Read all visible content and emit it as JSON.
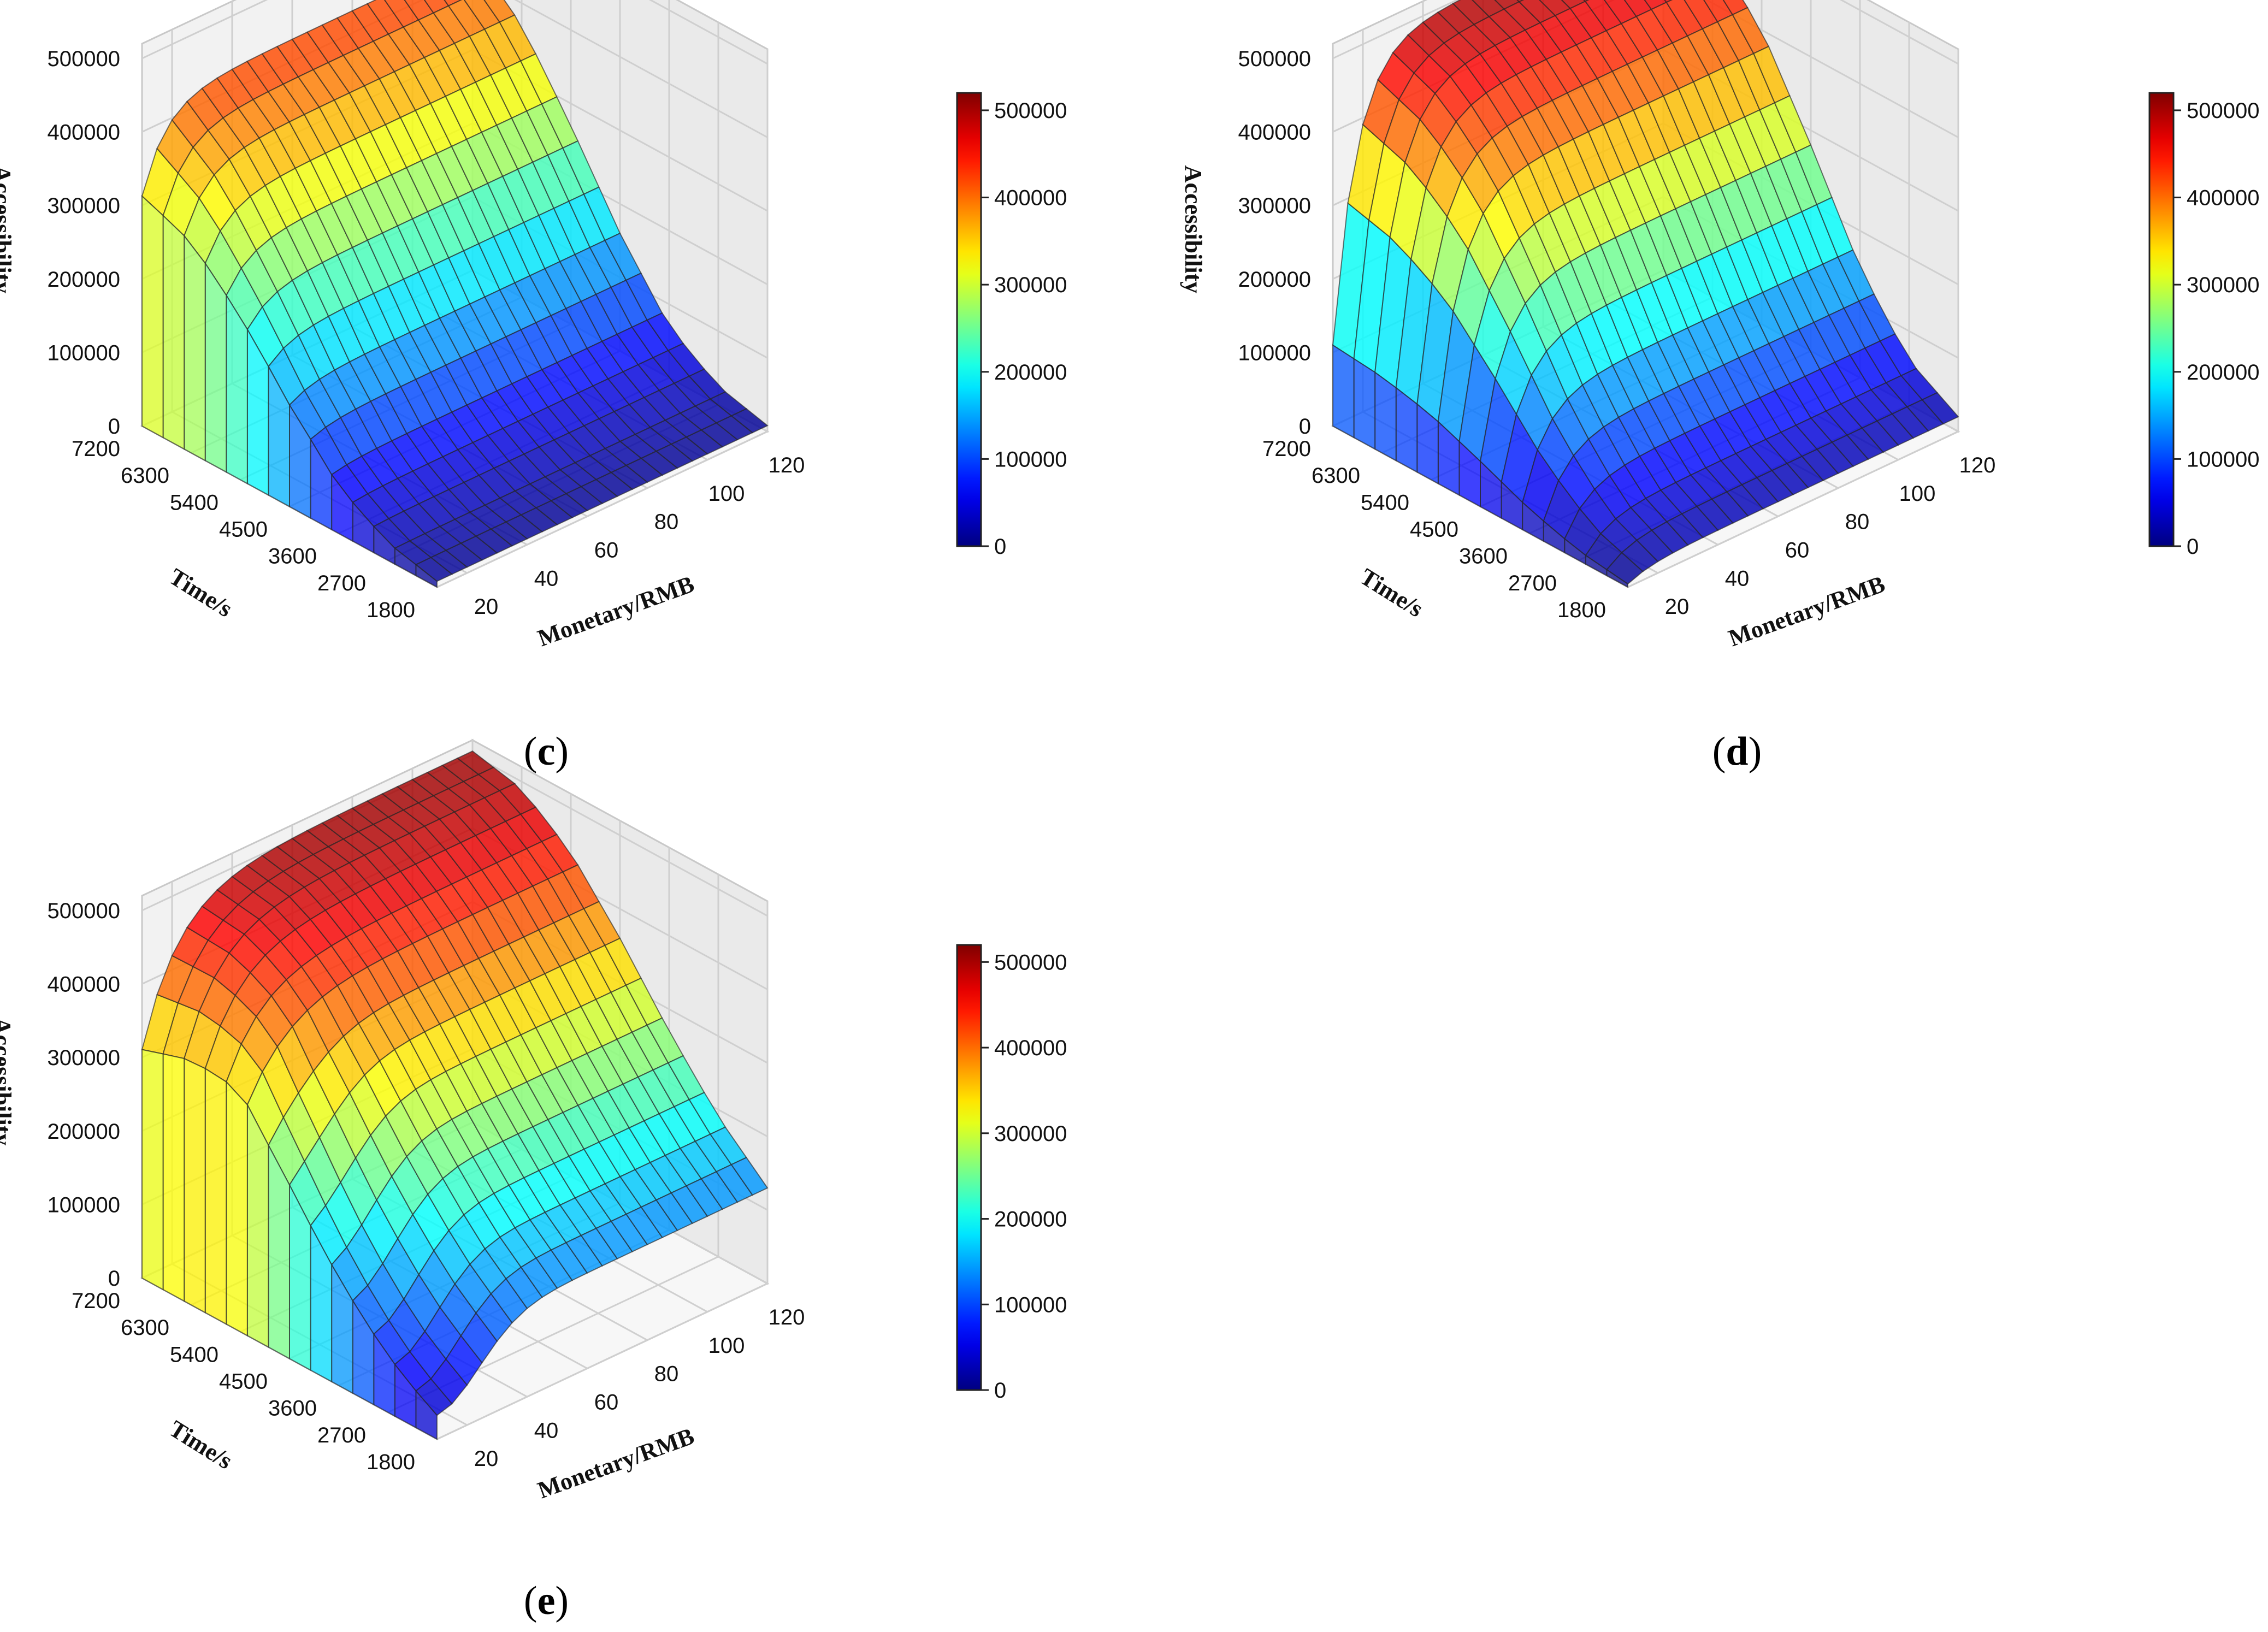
{
  "chart_data": [
    {
      "type": "surface3d",
      "panel_label": "c",
      "title": "",
      "xlabel": "Monetary/RMB",
      "ylabel": "Time/s",
      "zlabel": "Accessibility",
      "x_ticks": [
        "20",
        "40",
        "60",
        "80",
        "100",
        "120"
      ],
      "y_ticks": [
        "1800",
        "2700",
        "3600",
        "4500",
        "5400",
        "6300",
        "7200"
      ],
      "z_ticks": [
        "0",
        "100000",
        "200000",
        "300000",
        "400000",
        "500000"
      ],
      "x_range": [
        10,
        120
      ],
      "y_range": [
        1800,
        7200
      ],
      "z_range": [
        0,
        520000
      ],
      "colorbar": {
        "ticks": [
          "0",
          "100000",
          "200000",
          "300000",
          "400000",
          "500000"
        ],
        "range": [
          0,
          520000
        ],
        "colormap": "jet"
      },
      "surface_description_points": [
        {
          "time": 1800,
          "accessibility": 8000
        },
        {
          "time": 2700,
          "accessibility": 25000
        },
        {
          "time": 3600,
          "accessibility": 70000
        },
        {
          "time": 4500,
          "accessibility": 160000
        },
        {
          "time": 5400,
          "accessibility": 270000
        },
        {
          "time": 6300,
          "accessibility": 370000
        },
        {
          "time": 7200,
          "accessibility": 430000
        }
      ],
      "monetary_low_edge_accessibility": 320000
    },
    {
      "type": "surface3d",
      "panel_label": "d",
      "title": "",
      "xlabel": "Monetary/RMB",
      "ylabel": "Time/s",
      "zlabel": "Accessibility",
      "x_ticks": [
        "20",
        "40",
        "60",
        "80",
        "100",
        "120"
      ],
      "y_ticks": [
        "1800",
        "2700",
        "3600",
        "4500",
        "5400",
        "6300",
        "7200"
      ],
      "z_ticks": [
        "0",
        "100000",
        "200000",
        "300000",
        "400000",
        "500000"
      ],
      "x_range": [
        10,
        120
      ],
      "y_range": [
        1800,
        7200
      ],
      "z_range": [
        0,
        520000
      ],
      "colorbar": {
        "ticks": [
          "0",
          "100000",
          "200000",
          "300000",
          "400000",
          "500000"
        ],
        "range": [
          0,
          520000
        ],
        "colormap": "jet"
      },
      "surface_description_points": [
        {
          "time": 1800,
          "accessibility": 20000
        },
        {
          "time": 2700,
          "accessibility": 60000
        },
        {
          "time": 3600,
          "accessibility": 150000
        },
        {
          "time": 4500,
          "accessibility": 280000
        },
        {
          "time": 5400,
          "accessibility": 400000
        },
        {
          "time": 6300,
          "accessibility": 470000
        },
        {
          "time": 7200,
          "accessibility": 500000
        }
      ],
      "monetary_low_edge_accessibility": 110000
    },
    {
      "type": "surface3d",
      "panel_label": "e",
      "title": "",
      "xlabel": "Monetary/RMB",
      "ylabel": "Time/s",
      "zlabel": "Accessibility",
      "x_ticks": [
        "20",
        "40",
        "60",
        "80",
        "100",
        "120"
      ],
      "y_ticks": [
        "1800",
        "2700",
        "3600",
        "4500",
        "5400",
        "6300",
        "7200"
      ],
      "z_ticks": [
        "0",
        "100000",
        "200000",
        "300000",
        "400000",
        "500000"
      ],
      "x_range": [
        10,
        120
      ],
      "y_range": [
        1800,
        7200
      ],
      "z_range": [
        0,
        520000
      ],
      "colorbar": {
        "ticks": [
          "0",
          "100000",
          "200000",
          "300000",
          "400000",
          "500000"
        ],
        "range": [
          0,
          520000
        ],
        "colormap": "jet"
      },
      "surface_description_points": [
        {
          "time": 1800,
          "accessibility": 130000
        },
        {
          "time": 2700,
          "accessibility": 190000
        },
        {
          "time": 3600,
          "accessibility": 270000
        },
        {
          "time": 4500,
          "accessibility": 360000
        },
        {
          "time": 5400,
          "accessibility": 440000
        },
        {
          "time": 6300,
          "accessibility": 490000
        },
        {
          "time": 7200,
          "accessibility": 505000
        }
      ],
      "monetary_low_edge_accessibility": 320000
    }
  ]
}
